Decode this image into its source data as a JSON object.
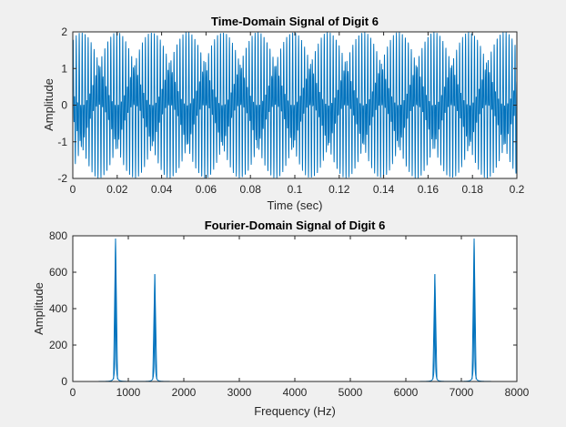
{
  "colors": {
    "figure_bg": "#f0f0f0",
    "axes_bg": "#ffffff",
    "axis": "#262626",
    "line": "#0072bd"
  },
  "chart_data": [
    {
      "type": "line",
      "title": "Time-Domain Signal of Digit 6",
      "xlabel": "Time (sec)",
      "ylabel": "Amplitude",
      "xlim": [
        0,
        0.2
      ],
      "ylim": [
        -2,
        2
      ],
      "xticks": [
        "0",
        "0.02",
        "0.04",
        "0.06",
        "0.08",
        "0.1",
        "0.12",
        "0.14",
        "0.16",
        "0.18",
        "0.2"
      ],
      "yticks": [
        "-2",
        "-1",
        "0",
        "1",
        "2"
      ],
      "grid": false,
      "series": [
        {
          "components": [
            {
              "frequency_hz": 770,
              "amplitude": 1
            },
            {
              "frequency_hz": 1477,
              "amplitude": 1
            }
          ]
        }
      ]
    },
    {
      "type": "line",
      "title": "Fourier-Domain Signal of Digit 6",
      "xlabel": "Frequency (Hz)",
      "ylabel": "Amplitude",
      "xlim": [
        0,
        8000
      ],
      "ylim": [
        0,
        800
      ],
      "xticks": [
        "0",
        "1000",
        "2000",
        "3000",
        "4000",
        "5000",
        "6000",
        "7000",
        "8000"
      ],
      "yticks": [
        "0",
        "200",
        "400",
        "600",
        "800"
      ],
      "grid": false,
      "series": [
        {
          "peaks": [
            {
              "x": 770,
              "y": 785
            },
            {
              "x": 1477,
              "y": 590
            },
            {
              "x": 6523,
              "y": 590
            },
            {
              "x": 7230,
              "y": 785
            }
          ]
        }
      ]
    }
  ]
}
